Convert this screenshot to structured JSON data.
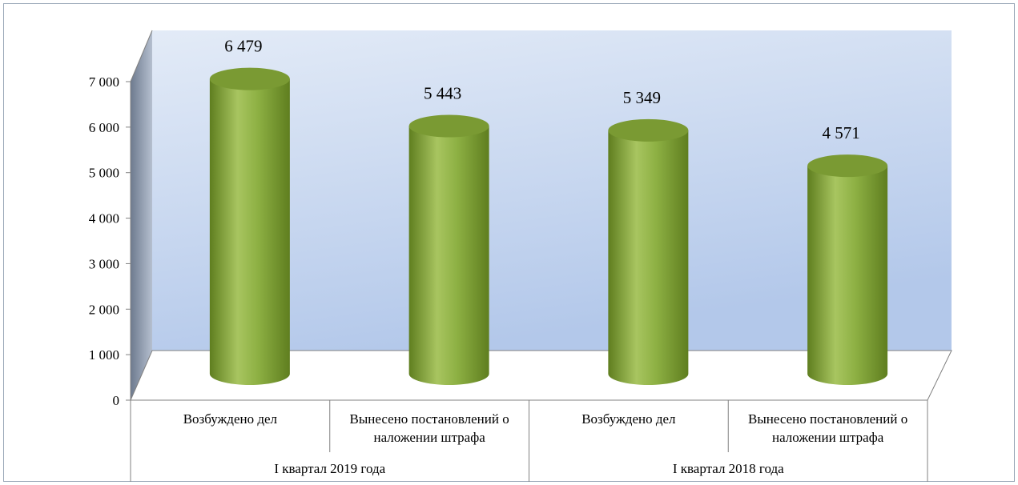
{
  "chart_data": {
    "type": "bar",
    "bar_style": "3d-cylinder",
    "title": "",
    "xlabel": "",
    "ylabel": "",
    "ylim": [
      0,
      7000
    ],
    "y_ticks": [
      {
        "value": 0,
        "label": "0"
      },
      {
        "value": 1000,
        "label": "1 000"
      },
      {
        "value": 2000,
        "label": "2 000"
      },
      {
        "value": 3000,
        "label": "3 000"
      },
      {
        "value": 4000,
        "label": "4 000"
      },
      {
        "value": 5000,
        "label": "5 000"
      },
      {
        "value": 6000,
        "label": "6 000"
      },
      {
        "value": 7000,
        "label": "7 000"
      }
    ],
    "categories": [
      {
        "label_lines": [
          "Возбуждено дел"
        ],
        "group": 0
      },
      {
        "label_lines": [
          "Вынесено постановлений о",
          "наложении штрафа"
        ],
        "group": 0
      },
      {
        "label_lines": [
          "Возбуждено дел"
        ],
        "group": 1
      },
      {
        "label_lines": [
          "Вынесено постановлений о",
          "наложении штрафа"
        ],
        "group": 1
      }
    ],
    "groups": [
      "I квартал 2019 года",
      "I квартал 2018 года"
    ],
    "values": [
      6479,
      5443,
      5349,
      4571
    ],
    "data_labels": [
      "6 479",
      "5 443",
      "5 349",
      "4 571"
    ],
    "grid": false,
    "legend": "none",
    "colors": {
      "bar_light": "#a8c560",
      "bar_mid": "#8db043",
      "bar_dark": "#5f7e1f",
      "bar_top": "#7a9a33",
      "wall_top": "#e3ebf7",
      "wall_bottom": "#b3c8ea",
      "side_wall_light": "#b5bfcf",
      "side_wall_dark": "#6d7a8e",
      "axis": "#808080"
    }
  }
}
